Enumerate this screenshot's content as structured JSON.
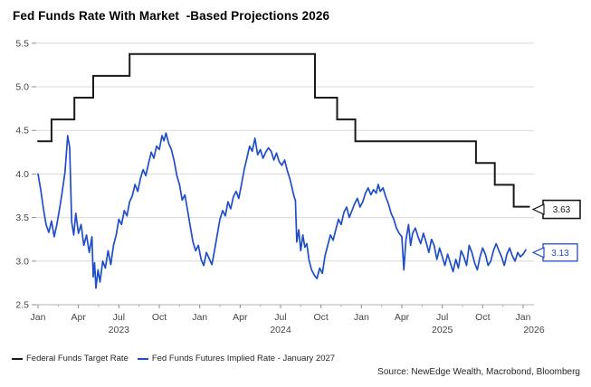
{
  "title": "Fed Funds Rate With Market  -Based Projections 2026",
  "source": "Source: NewEdge Wealth, Macrobond, Bloomberg",
  "legend": [
    {
      "label": "Federal Funds Target Rate",
      "color": "#1a1a1a"
    },
    {
      "label": "Fed Funds Futures Implied Rate - January 2027",
      "color": "#1f4ec7"
    }
  ],
  "chart_data": {
    "type": "line",
    "title": "Fed Funds Rate With Market  -Based Projections 2026",
    "xlabel": "",
    "ylabel": "",
    "x_unit": "months since Jan 2023",
    "x_range_labels": [
      "Jan 2023",
      "Jan 2026"
    ],
    "y_axis": {
      "min": 2.5,
      "max": 5.5,
      "ticks": [
        5.5,
        5.0,
        4.5,
        4.0,
        3.5,
        3.0,
        2.5
      ],
      "grid": true
    },
    "x_axis": {
      "quarter_ticks": [
        {
          "t": 0,
          "label": "Jan"
        },
        {
          "t": 3,
          "label": "Apr"
        },
        {
          "t": 6,
          "label": "Jul"
        },
        {
          "t": 9,
          "label": "Oct"
        },
        {
          "t": 12,
          "label": "Jan"
        },
        {
          "t": 15,
          "label": "Apr"
        },
        {
          "t": 18,
          "label": "Jul"
        },
        {
          "t": 21,
          "label": "Oct"
        },
        {
          "t": 24,
          "label": "Jan"
        },
        {
          "t": 27,
          "label": "Apr"
        },
        {
          "t": 30,
          "label": "Jul"
        },
        {
          "t": 33,
          "label": "Oct"
        },
        {
          "t": 36,
          "label": "Jan"
        }
      ],
      "year_labels": [
        {
          "t": 6,
          "label": "2023",
          "dx": 0
        },
        {
          "t": 18,
          "label": "2024",
          "dx": 0
        },
        {
          "t": 30,
          "label": "2025",
          "dx": 0
        },
        {
          "t": 36,
          "label": "2026",
          "dx": 12
        }
      ]
    },
    "legend_position": "bottom-left",
    "series": [
      {
        "name": "Federal Funds Target Rate",
        "type": "step",
        "color": "#1a1a1a",
        "width": 2,
        "end_label": "3.63",
        "points": [
          [
            0,
            4.375
          ],
          [
            1.0,
            4.625
          ],
          [
            2.7,
            4.875
          ],
          [
            4.1,
            5.125
          ],
          [
            6.8,
            5.375
          ],
          [
            20.55,
            4.875
          ],
          [
            22.2,
            4.625
          ],
          [
            23.55,
            4.375
          ],
          [
            32.5,
            4.125
          ],
          [
            33.9,
            3.875
          ],
          [
            35.3,
            3.625
          ],
          [
            36.45,
            3.625
          ]
        ]
      },
      {
        "name": "Fed Funds Futures Implied Rate - January 2027",
        "type": "line",
        "color": "#1f4ec7",
        "width": 1.7,
        "end_label": "3.13",
        "points": [
          [
            0,
            4.0
          ],
          [
            0.2,
            3.82
          ],
          [
            0.4,
            3.6
          ],
          [
            0.6,
            3.42
          ],
          [
            0.8,
            3.33
          ],
          [
            1.0,
            3.46
          ],
          [
            1.2,
            3.28
          ],
          [
            1.4,
            3.42
          ],
          [
            1.6,
            3.6
          ],
          [
            1.8,
            3.8
          ],
          [
            2.0,
            4.02
          ],
          [
            2.2,
            4.44
          ],
          [
            2.35,
            4.3
          ],
          [
            2.5,
            3.45
          ],
          [
            2.65,
            3.3
          ],
          [
            2.8,
            3.55
          ],
          [
            3.0,
            3.32
          ],
          [
            3.2,
            3.42
          ],
          [
            3.4,
            3.18
          ],
          [
            3.6,
            3.3
          ],
          [
            3.8,
            3.1
          ],
          [
            4.0,
            3.28
          ],
          [
            4.1,
            2.82
          ],
          [
            4.2,
            2.98
          ],
          [
            4.3,
            2.69
          ],
          [
            4.45,
            2.9
          ],
          [
            4.6,
            2.76
          ],
          [
            4.8,
            3.0
          ],
          [
            5.0,
            2.92
          ],
          [
            5.2,
            3.12
          ],
          [
            5.4,
            2.96
          ],
          [
            5.6,
            3.18
          ],
          [
            5.8,
            3.3
          ],
          [
            6.0,
            3.48
          ],
          [
            6.2,
            3.42
          ],
          [
            6.4,
            3.58
          ],
          [
            6.6,
            3.52
          ],
          [
            6.8,
            3.68
          ],
          [
            7.0,
            3.75
          ],
          [
            7.2,
            3.88
          ],
          [
            7.4,
            3.8
          ],
          [
            7.6,
            3.95
          ],
          [
            7.8,
            4.05
          ],
          [
            8.0,
            3.98
          ],
          [
            8.2,
            4.12
          ],
          [
            8.4,
            4.25
          ],
          [
            8.6,
            4.18
          ],
          [
            8.8,
            4.32
          ],
          [
            9.0,
            4.28
          ],
          [
            9.2,
            4.44
          ],
          [
            9.35,
            4.38
          ],
          [
            9.5,
            4.47
          ],
          [
            9.7,
            4.35
          ],
          [
            9.9,
            4.28
          ],
          [
            10.1,
            4.15
          ],
          [
            10.3,
            3.98
          ],
          [
            10.5,
            3.88
          ],
          [
            10.7,
            3.7
          ],
          [
            10.9,
            3.76
          ],
          [
            11.1,
            3.58
          ],
          [
            11.3,
            3.4
          ],
          [
            11.5,
            3.22
          ],
          [
            11.7,
            3.12
          ],
          [
            11.9,
            3.18
          ],
          [
            12.1,
            3.02
          ],
          [
            12.3,
            2.95
          ],
          [
            12.5,
            3.1
          ],
          [
            12.7,
            3.03
          ],
          [
            12.9,
            2.96
          ],
          [
            13.1,
            3.12
          ],
          [
            13.3,
            3.3
          ],
          [
            13.5,
            3.48
          ],
          [
            13.7,
            3.58
          ],
          [
            13.9,
            3.52
          ],
          [
            14.1,
            3.68
          ],
          [
            14.3,
            3.6
          ],
          [
            14.5,
            3.74
          ],
          [
            14.7,
            3.8
          ],
          [
            14.9,
            3.72
          ],
          [
            15.1,
            3.88
          ],
          [
            15.3,
            4.05
          ],
          [
            15.5,
            4.18
          ],
          [
            15.7,
            4.32
          ],
          [
            15.9,
            4.26
          ],
          [
            16.1,
            4.41
          ],
          [
            16.3,
            4.22
          ],
          [
            16.5,
            4.28
          ],
          [
            16.7,
            4.18
          ],
          [
            16.9,
            4.25
          ],
          [
            17.1,
            4.3
          ],
          [
            17.3,
            4.26
          ],
          [
            17.5,
            4.16
          ],
          [
            17.7,
            4.24
          ],
          [
            17.9,
            4.14
          ],
          [
            18.1,
            4.1
          ],
          [
            18.3,
            4.16
          ],
          [
            18.5,
            4.04
          ],
          [
            18.7,
            3.94
          ],
          [
            18.85,
            3.84
          ],
          [
            19.0,
            3.74
          ],
          [
            19.1,
            3.7
          ],
          [
            19.2,
            3.22
          ],
          [
            19.35,
            3.36
          ],
          [
            19.5,
            3.12
          ],
          [
            19.65,
            3.3
          ],
          [
            19.8,
            3.16
          ],
          [
            19.95,
            3.2
          ],
          [
            20.1,
            3.02
          ],
          [
            20.3,
            2.9
          ],
          [
            20.5,
            2.84
          ],
          [
            20.7,
            2.8
          ],
          [
            20.9,
            2.92
          ],
          [
            21.1,
            2.86
          ],
          [
            21.3,
            3.06
          ],
          [
            21.5,
            3.18
          ],
          [
            21.7,
            3.3
          ],
          [
            21.9,
            3.24
          ],
          [
            22.1,
            3.36
          ],
          [
            22.3,
            3.48
          ],
          [
            22.5,
            3.42
          ],
          [
            22.7,
            3.56
          ],
          [
            22.9,
            3.62
          ],
          [
            23.1,
            3.5
          ],
          [
            23.3,
            3.58
          ],
          [
            23.5,
            3.66
          ],
          [
            23.7,
            3.72
          ],
          [
            23.9,
            3.62
          ],
          [
            24.1,
            3.68
          ],
          [
            24.3,
            3.78
          ],
          [
            24.5,
            3.84
          ],
          [
            24.7,
            3.76
          ],
          [
            24.9,
            3.82
          ],
          [
            25.1,
            3.78
          ],
          [
            25.25,
            3.88
          ],
          [
            25.4,
            3.8
          ],
          [
            25.6,
            3.84
          ],
          [
            25.8,
            3.74
          ],
          [
            26.0,
            3.66
          ],
          [
            26.2,
            3.55
          ],
          [
            26.4,
            3.48
          ],
          [
            26.6,
            3.38
          ],
          [
            26.8,
            3.32
          ],
          [
            27.0,
            3.28
          ],
          [
            27.15,
            2.9
          ],
          [
            27.3,
            3.24
          ],
          [
            27.5,
            3.42
          ],
          [
            27.65,
            3.18
          ],
          [
            27.8,
            3.32
          ],
          [
            28.0,
            3.38
          ],
          [
            28.2,
            3.28
          ],
          [
            28.4,
            3.2
          ],
          [
            28.6,
            3.32
          ],
          [
            28.8,
            3.22
          ],
          [
            29.0,
            3.1
          ],
          [
            29.2,
            3.25
          ],
          [
            29.4,
            3.18
          ],
          [
            29.6,
            3.02
          ],
          [
            29.8,
            3.15
          ],
          [
            30.0,
            3.05
          ],
          [
            30.2,
            2.95
          ],
          [
            30.4,
            3.08
          ],
          [
            30.6,
            2.98
          ],
          [
            30.8,
            2.88
          ],
          [
            31.0,
            3.02
          ],
          [
            31.2,
            2.92
          ],
          [
            31.4,
            3.12
          ],
          [
            31.6,
            3.05
          ],
          [
            31.8,
            2.95
          ],
          [
            32.0,
            3.18
          ],
          [
            32.2,
            3.1
          ],
          [
            32.4,
            2.98
          ],
          [
            32.6,
            2.9
          ],
          [
            32.8,
            3.05
          ],
          [
            33.0,
            3.15
          ],
          [
            33.2,
            3.08
          ],
          [
            33.4,
            2.95
          ],
          [
            33.6,
            3.0
          ],
          [
            33.8,
            3.12
          ],
          [
            34.0,
            3.2
          ],
          [
            34.2,
            3.12
          ],
          [
            34.4,
            3.05
          ],
          [
            34.6,
            2.95
          ],
          [
            34.8,
            3.08
          ],
          [
            35.0,
            3.15
          ],
          [
            35.2,
            3.06
          ],
          [
            35.4,
            3.0
          ],
          [
            35.6,
            3.1
          ],
          [
            35.8,
            3.05
          ],
          [
            36.0,
            3.08
          ],
          [
            36.2,
            3.13
          ]
        ]
      }
    ]
  }
}
